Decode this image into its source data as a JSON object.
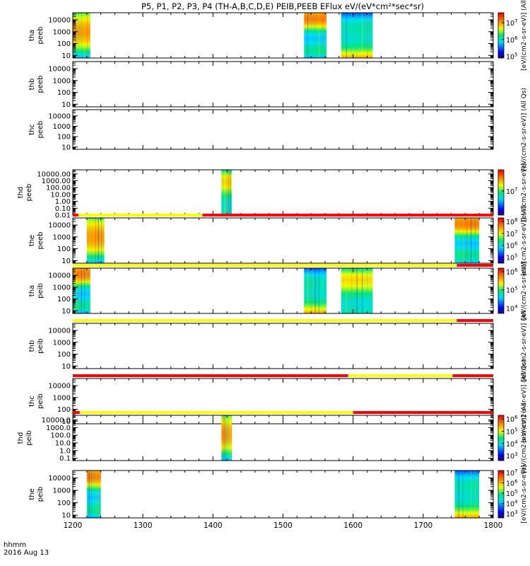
{
  "title": "P5, P1, P2, P3, P4 (TH-A,B,C,D,E) PEIB,PEEB EFlux eV/(eV*cm²*sec*sr)",
  "x_axis": {
    "ticks": [
      "1200",
      "1300",
      "1400",
      "1500",
      "1600",
      "1700",
      "1800"
    ],
    "label_line1": "hhmm",
    "label_line2": "2016 Aug 13"
  },
  "chart_data": [
    {
      "type": "heatmap",
      "ylabel": [
        "tha",
        "peeb"
      ],
      "yticks": [
        "10",
        "100",
        "1000",
        "10000"
      ],
      "ylim": [
        6,
        40000
      ],
      "ylog": true,
      "blocks": [
        [
          1200,
          1225
        ],
        [
          1530,
          1562
        ],
        [
          1583,
          1628
        ]
      ],
      "colorbar": {
        "label": "[eV/(cm2-s-sr-eV)] (All",
        "ticks": [
          {
            "b": "10",
            "e": "7",
            "v": 7
          },
          {
            "b": "10",
            "e": "6",
            "v": 6
          },
          {
            "b": "10",
            "e": "5",
            "v": 5
          }
        ],
        "range": [
          4.9,
          7.6
        ]
      }
    },
    {
      "type": "heatmap",
      "ylabel": [
        "thb",
        "peeb"
      ],
      "yticks": [
        "10",
        "100",
        "1000",
        "10000"
      ],
      "ylim": [
        6,
        40000
      ],
      "ylog": true,
      "blocks": []
    },
    {
      "type": "heatmap",
      "ylabel": [
        "thc",
        "peeb"
      ],
      "yticks": [
        "10",
        "100",
        "1000",
        "10000"
      ],
      "ylim": [
        6,
        40000
      ],
      "ylog": true,
      "blocks": [],
      "colorbar": {
        "label": "[eV/(cm2-s-sr-eV)] (All Qs)",
        "ticks": [],
        "range": [
          0,
          1
        ]
      }
    },
    {
      "type": "heatmap",
      "ylabel": [
        "thd",
        "peeb"
      ],
      "yticks": [
        "0.01",
        "0.10",
        "1.00",
        "10.00",
        "100.00",
        "1000.00",
        "10000.00"
      ],
      "ylim": [
        0.01,
        40000
      ],
      "ylog": true,
      "blocks": [
        [
          1412,
          1427
        ]
      ],
      "colorbar": {
        "label": "[eV/(cm2-s-sr-eV)]",
        "ticks": [
          {
            "b": "10",
            "e": "7",
            "v": 7
          }
        ],
        "range": [
          6.2,
          7.7
        ]
      }
    },
    {
      "type": "heatmap",
      "ylabel": [
        "the",
        "peeb"
      ],
      "yticks": [
        "10",
        "100",
        "1000",
        "10000"
      ],
      "ylim": [
        6,
        40000
      ],
      "ylog": true,
      "blocks": [
        [
          1220,
          1245
        ],
        [
          1745,
          1780
        ]
      ],
      "colorbar": {
        "label": "[eV/(cm2-s-sr-eV)] (All",
        "ticks": [
          {
            "b": "10",
            "e": "8",
            "v": 8
          },
          {
            "b": "10",
            "e": "7",
            "v": 7
          },
          {
            "b": "10",
            "e": "6",
            "v": 6
          },
          {
            "b": "10",
            "e": "5",
            "v": 5
          }
        ],
        "range": [
          4.5,
          8.3
        ]
      }
    },
    {
      "type": "heatmap",
      "ylabel": [
        "tha",
        "peib"
      ],
      "yticks": [
        "10",
        "100",
        "1000",
        "10000"
      ],
      "ylim": [
        6,
        40000
      ],
      "ylog": true,
      "blocks": [
        [
          1200,
          1225
        ],
        [
          1530,
          1562
        ],
        [
          1583,
          1628
        ]
      ],
      "colorbar": {
        "label": "[eV/(cm2-s-sr-eV)]",
        "ticks": [
          {
            "b": "10",
            "e": "6",
            "v": 6
          },
          {
            "b": "10",
            "e": "5",
            "v": 5
          },
          {
            "b": "10",
            "e": "4",
            "v": 4
          }
        ],
        "range": [
          3.7,
          6.2
        ]
      }
    },
    {
      "type": "heatmap",
      "ylabel": [
        "thb",
        "peib"
      ],
      "yticks": [
        "10",
        "100",
        "1000",
        "10000"
      ],
      "ylim": [
        6,
        40000
      ],
      "ylog": true,
      "blocks": [],
      "colorbar": {
        "label": "[eV/(cm2-s-sr-eV)] (All",
        "ticks": [],
        "range": [
          0,
          1
        ]
      }
    },
    {
      "type": "heatmap",
      "ylabel": [
        "thc",
        "peib"
      ],
      "yticks": [
        "10",
        "100",
        "1000",
        "10000"
      ],
      "ylim": [
        6,
        40000
      ],
      "ylog": true,
      "blocks": [],
      "colorbar": {
        "label": "[eV/(cm2-s-sr-eV)] (All Qs)",
        "ticks": [],
        "range": [
          0,
          1
        ]
      }
    },
    {
      "type": "heatmap",
      "ylabel": [
        "thd",
        "peib"
      ],
      "yticks": [
        "0.1",
        "1.0",
        "10.0",
        "100.0",
        "1000.0",
        "10000.0"
      ],
      "ylim": [
        0.05,
        40000
      ],
      "ylog": true,
      "blocks": [
        [
          1412,
          1427
        ]
      ],
      "colorbar": {
        "label": "[eV/(cm2-s-sr-eV)] (All",
        "ticks": [
          {
            "b": "10",
            "e": "6",
            "v": 6
          },
          {
            "b": "10",
            "e": "5",
            "v": 5
          },
          {
            "b": "10",
            "e": "4",
            "v": 4
          },
          {
            "b": "10",
            "e": "3",
            "v": 3
          }
        ],
        "range": [
          2.6,
          6.3
        ]
      }
    },
    {
      "type": "heatmap",
      "ylabel": [
        "the",
        "peib"
      ],
      "yticks": [
        "10",
        "100",
        "1000",
        "10000"
      ],
      "ylim": [
        6,
        40000
      ],
      "ylog": true,
      "blocks": [
        [
          1220,
          1240
        ],
        [
          1745,
          1780
        ]
      ],
      "colorbar": {
        "label": "[eV/(cm2-s-sr-eV)]",
        "ticks": [
          {
            "b": "10",
            "e": "7",
            "v": 7
          },
          {
            "b": "10",
            "e": "6",
            "v": 6
          },
          {
            "b": "10",
            "e": "5",
            "v": 5
          },
          {
            "b": "10",
            "e": "4",
            "v": 4
          },
          {
            "b": "10",
            "e": "3",
            "v": 3
          }
        ],
        "range": [
          2.6,
          7.2
        ]
      }
    }
  ],
  "mode_bars": [
    {
      "after_panel": 4,
      "segments": [
        {
          "from": 1200,
          "to": 1208,
          "color": "#ff0000"
        },
        {
          "from": 1208,
          "to": 1385,
          "color": "#ffff00"
        },
        {
          "from": 1385,
          "to": 1800,
          "color": "#ff0000"
        }
      ]
    },
    {
      "after_panel": 5,
      "segments": [
        {
          "from": 1200,
          "to": 1748,
          "color": "#ffff00"
        },
        {
          "from": 1748,
          "to": 1800,
          "color": "#ff0000"
        }
      ]
    },
    {
      "after_panel": 6,
      "segments": [
        {
          "from": 1200,
          "to": 1748,
          "color": "#ffff00"
        },
        {
          "from": 1748,
          "to": 1800,
          "color": "#ff0000"
        }
      ]
    },
    {
      "after_panel": 7,
      "segments": [
        {
          "from": 1200,
          "to": 1593,
          "color": "#ff0000"
        },
        {
          "from": 1593,
          "to": 1742,
          "color": "#ffff00"
        },
        {
          "from": 1742,
          "to": 1800,
          "color": "#ff0000"
        }
      ]
    },
    {
      "after_panel": 8,
      "segments": [
        {
          "from": 1200,
          "to": 1210,
          "color": "#ff0000"
        },
        {
          "from": 1210,
          "to": 1600,
          "color": "#ffff00"
        },
        {
          "from": 1600,
          "to": 1800,
          "color": "#ff0000"
        }
      ]
    }
  ]
}
